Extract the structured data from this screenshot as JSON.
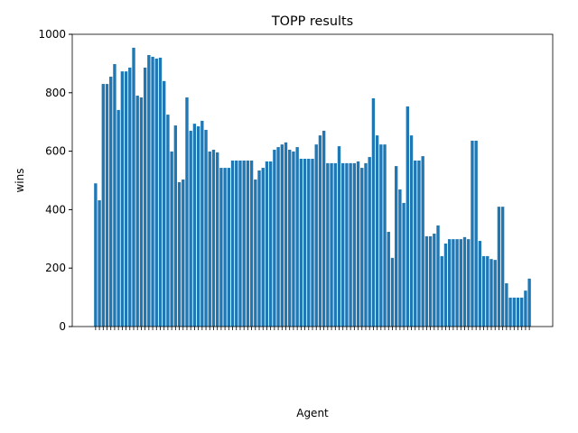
{
  "chart_data": {
    "type": "bar",
    "title": "TOPP results",
    "xlabel": "Agent",
    "ylabel": "wins",
    "color": "#1f77b4",
    "categories": [
      null,
      null,
      null,
      null,
      null,
      null,
      null,
      null,
      null,
      null,
      null,
      null,
      null,
      null,
      null,
      null,
      null,
      null,
      null,
      null,
      null,
      null,
      null,
      null,
      null,
      null,
      null,
      null,
      null,
      null,
      null,
      null,
      null,
      null,
      null,
      null,
      null,
      null,
      null,
      null,
      null,
      null,
      null,
      null,
      null,
      null,
      null,
      null,
      null,
      null,
      null,
      null,
      null,
      null,
      null,
      null,
      null,
      null,
      null,
      null,
      null,
      null,
      null,
      null,
      null,
      null,
      null,
      null,
      null,
      null,
      null,
      null,
      null,
      null,
      null,
      null,
      null,
      null,
      null,
      null,
      null,
      null,
      null,
      null,
      null,
      null,
      null,
      null,
      null,
      null,
      null,
      null,
      null,
      null,
      null,
      null,
      null,
      null,
      null,
      null,
      null,
      null,
      null,
      null,
      null,
      null,
      null,
      null,
      null,
      null,
      null,
      null,
      null,
      null,
      null
    ],
    "values": [
      490,
      432,
      830,
      830,
      855,
      898,
      741,
      873,
      873,
      886,
      954,
      790,
      784,
      886,
      929,
      923,
      917,
      920,
      840,
      725,
      599,
      688,
      494,
      503,
      784,
      670,
      694,
      685,
      704,
      673,
      599,
      605,
      596,
      543,
      543,
      543,
      568,
      568,
      568,
      568,
      568,
      568,
      503,
      534,
      543,
      565,
      565,
      605,
      614,
      623,
      630,
      605,
      599,
      614,
      574,
      574,
      574,
      574,
      623,
      654,
      670,
      559,
      559,
      559,
      617,
      559,
      559,
      559,
      559,
      565,
      543,
      559,
      580,
      781,
      654,
      623,
      623,
      324,
      235,
      549,
      469,
      423,
      753,
      654,
      568,
      568,
      583,
      309,
      309,
      318,
      346,
      241,
      284,
      299,
      299,
      299,
      299,
      306,
      299,
      636,
      636,
      293,
      241,
      241,
      231,
      228,
      410,
      410,
      148,
      99,
      99,
      99,
      99,
      123,
      164
    ],
    "ylim": [
      0,
      1000
    ],
    "yticks": [
      0,
      200,
      400,
      600,
      800,
      1000
    ]
  }
}
